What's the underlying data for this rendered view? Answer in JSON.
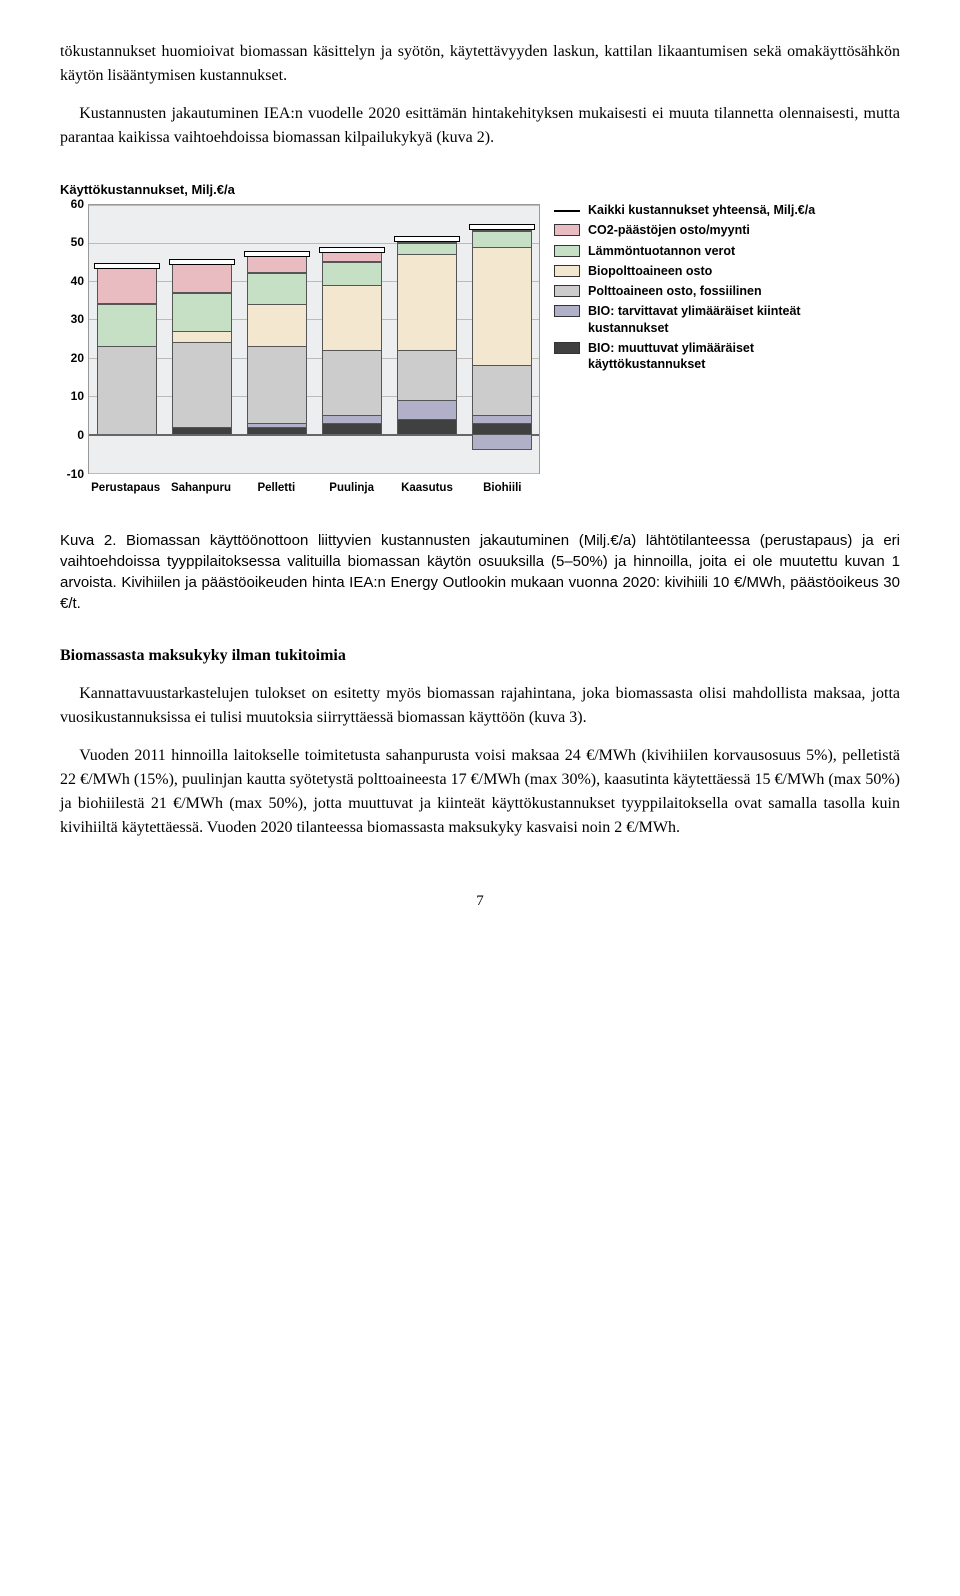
{
  "paragraphs": {
    "p1": "tökustannukset huomioivat biomassan käsittelyn ja syötön, käytettävyyden laskun, kattilan likaantumisen sekä omakäyttösähkön käytön lisääntymisen kustannukset.",
    "p2": "Kustannusten jakautuminen IEA:n vuodelle 2020 esittämän hintakehityksen mukaisesti ei muuta tilannetta olennaisesti, mutta parantaa kaikissa vaihtoehdoissa biomassan kilpailukykyä (kuva 2)."
  },
  "chart": {
    "title": "Käyttökustannukset, Milj.€/a",
    "y": {
      "min": -10,
      "max": 60,
      "step": 10
    },
    "categories": [
      "Perustapaus",
      "Sahanpuru",
      "Pelletti",
      "Puulinja",
      "Kaasutus",
      "Biohiili"
    ],
    "series_colors": {
      "bio_muuttuvat": "#404040",
      "bio_kiinteat": "#b0b0c8",
      "poltto_foss": "#cccccc",
      "biopoltto": "#f3e8cf",
      "lammon": "#c6e0c6",
      "co2": "#e8bcc1"
    },
    "bg": "#eceef0",
    "grid": "#bbbbbb",
    "data": [
      {
        "total": 44,
        "neg_bio_k": 0,
        "pos": {
          "bio_m": 0,
          "bio_k": 0,
          "foss": 23,
          "bioost": 0,
          "lam": 11,
          "co2": 10
        }
      },
      {
        "total": 45,
        "neg_bio_k": 0,
        "pos": {
          "bio_m": 2,
          "bio_k": 0,
          "foss": 22,
          "bioost": 3,
          "lam": 10,
          "co2": 8
        }
      },
      {
        "total": 47,
        "neg_bio_k": 0,
        "pos": {
          "bio_m": 2,
          "bio_k": 1,
          "foss": 20,
          "bioost": 11,
          "lam": 8,
          "co2": 5
        }
      },
      {
        "total": 48,
        "neg_bio_k": 0,
        "pos": {
          "bio_m": 3,
          "bio_k": 2,
          "foss": 17,
          "bioost": 17,
          "lam": 6,
          "co2": 3
        }
      },
      {
        "total": 51,
        "neg_bio_k": 0,
        "pos": {
          "bio_m": 4,
          "bio_k": 5,
          "foss": 13,
          "bioost": 25,
          "lam": 3,
          "co2": 1
        }
      },
      {
        "total": 54,
        "neg_bio_k": -4,
        "pos": {
          "bio_m": 3,
          "bio_k": 2,
          "foss": 13,
          "bioost": 31,
          "lam": 4,
          "co2": 1
        }
      }
    ],
    "legend": [
      {
        "type": "line",
        "label": "Kaikki kustannukset yhteensä, Milj.€/a"
      },
      {
        "type": "swatch",
        "key": "co2",
        "label": "CO2-päästöjen osto/myynti"
      },
      {
        "type": "swatch",
        "key": "lammon",
        "label": "Lämmöntuotannon verot"
      },
      {
        "type": "swatch",
        "key": "biopoltto",
        "label": "Biopolttoaineen osto"
      },
      {
        "type": "swatch",
        "key": "poltto_foss",
        "label": "Polttoaineen osto, fossiilinen",
        "hatch": true
      },
      {
        "type": "swatch",
        "key": "bio_kiinteat",
        "label": "BIO: tarvittavat ylimääräiset kiinteät kustannukset"
      },
      {
        "type": "swatch",
        "key": "bio_muuttuvat",
        "label": "BIO: muuttuvat ylimääräiset käyttökustannukset"
      }
    ]
  },
  "caption": "Kuva 2. Biomassan käyttöönottoon liittyvien kustannusten jakautuminen (Milj.€/a) lähtötilanteessa (perustapaus)  ja  eri vaihtoehdoissa tyyppilaitoksessa valituilla biomassan käytön osuuksilla (5–50%) ja hinnoilla, joita ei ole muutettu kuvan 1 arvoista. Kivihiilen ja päästöoikeuden hinta IEA:n Energy Outlookin mukaan vuonna 2020: kivihiili 10 €/MWh, päästöoikeus 30 €/t.",
  "section_head": "Biomassasta maksukyky ilman tukitoimia",
  "paragraphs2": {
    "p3": "Kannattavuustarkastelujen tulokset on esitetty myös biomassan rajahintana, joka biomassasta olisi mahdollista maksaa, jotta vuosikustannuksissa ei tulisi muutoksia siirryttäessä biomassan käyttöön (kuva 3).",
    "p4": "Vuoden 2011 hinnoilla laitokselle toimitetusta sahanpurusta voisi maksaa 24 €/MWh (kivihiilen korvausosuus 5%), pelletistä 22 €/MWh (15%), puulinjan kautta syötetystä polttoaineesta 17 €/MWh (max 30%), kaasutinta käytettäessä 15 €/MWh (max 50%) ja biohiilestä 21 €/MWh (max 50%), jotta muuttuvat ja kiinteät käyttökustannukset tyyppilaitoksella ovat samalla tasolla kuin kivihiiltä käytettäessä. Vuoden 2020 tilanteessa biomassasta maksukyky kasvaisi noin 2 €/MWh."
  },
  "page_number": "7"
}
